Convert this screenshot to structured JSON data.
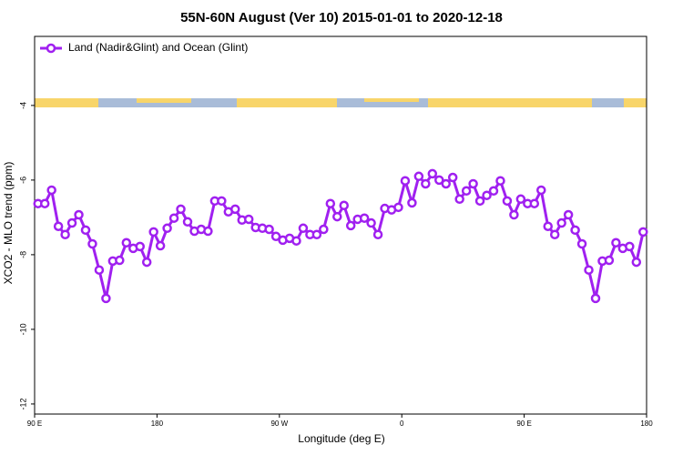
{
  "chart_data": {
    "type": "line",
    "title": "55N-60N August (Ver 10)   2015-01-01 to 2020-12-18",
    "x_label": "Longitude (deg E)",
    "y_label": "XCO2 - MLO trend (ppm)",
    "x": [
      92.5,
      97.5,
      102.5,
      107.5,
      112.5,
      117.5,
      122.5,
      127.5,
      132.5,
      137.5,
      142.5,
      147.5,
      152.5,
      157.5,
      162.5,
      167.5,
      172.5,
      177.5,
      182.5,
      187.5,
      192.5,
      197.5,
      202.5,
      207.5,
      212.5,
      217.5,
      222.5,
      227.5,
      232.5,
      237.5,
      242.5,
      247.5,
      252.5,
      257.5,
      262.5,
      267.5,
      272.5,
      277.5,
      282.5,
      287.5,
      292.5,
      297.5,
      302.5,
      307.5,
      312.5,
      317.5,
      322.5,
      327.5,
      332.5,
      337.5,
      342.5,
      347.5,
      352.5,
      357.5,
      362.5,
      367.5,
      372.5,
      377.5,
      382.5,
      387.5,
      392.5,
      397.5,
      402.5,
      407.5,
      412.5,
      417.5,
      422.5,
      427.5,
      432.5,
      437.5,
      442.5,
      447.5,
      452.5,
      457.5,
      462.5,
      467.5,
      472.5,
      477.5,
      482.5,
      487.5,
      492.5,
      497.5,
      502.5,
      507.5,
      512.5,
      517.5,
      522.5,
      527.5,
      532.5,
      537.5
    ],
    "series": [
      {
        "name": "Land (Nadir&Glint) and Ocean (Glint)",
        "color": "#a020f0",
        "values": [
          -6.63,
          -6.63,
          -6.27,
          -7.24,
          -7.46,
          -7.15,
          -6.93,
          -7.34,
          -7.71,
          -8.41,
          -9.17,
          -8.17,
          -8.15,
          -7.68,
          -7.83,
          -7.78,
          -8.2,
          -7.39,
          -7.76,
          -7.29,
          -7.02,
          -6.78,
          -7.12,
          -7.37,
          -7.32,
          -7.37,
          -6.56,
          -6.56,
          -6.85,
          -6.78,
          -7.07,
          -7.05,
          -7.27,
          -7.29,
          -7.32,
          -7.51,
          -7.61,
          -7.56,
          -7.63,
          -7.29,
          -7.46,
          -7.46,
          -7.32,
          -6.63,
          -6.98,
          -6.68,
          -7.22,
          -7.05,
          -7.02,
          -7.15,
          -7.46,
          -6.76,
          -6.8,
          -6.73,
          -6.02,
          -6.61,
          -5.9,
          -6.1,
          -5.83,
          -6.0,
          -6.1,
          -5.93,
          -6.51,
          -6.29,
          -6.1,
          -6.56,
          -6.41,
          -6.29,
          -6.02,
          -6.56,
          -6.93,
          -6.51,
          -6.63,
          -6.63,
          -6.27,
          -7.24,
          -7.46,
          -7.15,
          -6.93,
          -7.34,
          -7.71,
          -8.41,
          -9.17,
          -8.17,
          -8.15,
          -7.68,
          -7.83,
          -7.78,
          -8.2,
          -7.39
        ]
      }
    ],
    "xlim": [
      90,
      540
    ],
    "xticks": [
      {
        "value": 90,
        "label": "90 E"
      },
      180,
      {
        "value": 270,
        "label": "90 W"
      },
      {
        "value": 360,
        "label": "0"
      },
      {
        "value": 450,
        "label": "90 E"
      },
      {
        "value": 540,
        "label": "180"
      }
    ],
    "ylim": [
      -12.27,
      -2.15
    ],
    "yticks": [
      -4,
      -6,
      -8,
      -10,
      -12
    ],
    "legend": "top-left"
  }
}
